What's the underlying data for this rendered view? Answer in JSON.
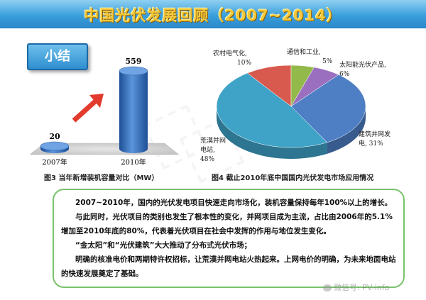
{
  "header": {
    "title": "中国光伏发展回顾（2007~2014）"
  },
  "summary_label": "小结",
  "chart_data": [
    {
      "type": "bar",
      "caption": "图3  当年新增装机容量对比（MW）",
      "categories": [
        "2007年",
        "2010年"
      ],
      "values": [
        20,
        559
      ],
      "bar_color": "#2e6fc2"
    },
    {
      "type": "pie",
      "caption": "图4  截止2010年底中国国内光伏发电市场应用情况",
      "slices": [
        {
          "label": "农村电气化,",
          "value_text": "10%",
          "value": 10,
          "color": "#d85a4e"
        },
        {
          "label": "通信和工业,",
          "value_text": "5%",
          "value": 5,
          "color": "#93b94a"
        },
        {
          "label": "太阳能光伏产品,",
          "value_text": "6%",
          "value": 6,
          "color": "#9a6fbf"
        },
        {
          "label": "建筑并网发电,",
          "value_text": "31%",
          "value": 31,
          "color": "#4e7fc4"
        },
        {
          "label": "荒漠并网电站,",
          "value_text": "48%",
          "value": 48,
          "color": "#3fa3c8"
        }
      ]
    }
  ],
  "summary": {
    "p1": "2007~2010年，国内的光伏发电项目快速走向市场化，装机容量保持每年100%以上的增长。",
    "p2": "与此同时，光伏项目的类别也发生了根本性的变化，并网项目成为主流，占比由2006年的5.1%增加至2010年底的80%，代表着光伏项目在社会中发挥的作用与地位发生变化。",
    "p3": "“金太阳”和“光伏建筑”大大推动了分布式光伏市场；",
    "p4": "明确的核准电价和两期特许权招标，让荒漠并网电站火热起来。上网电价的明确，为未来地面电站的快速发展奠定了基础。"
  },
  "watermark": {
    "text": "微信号: PV-info"
  }
}
